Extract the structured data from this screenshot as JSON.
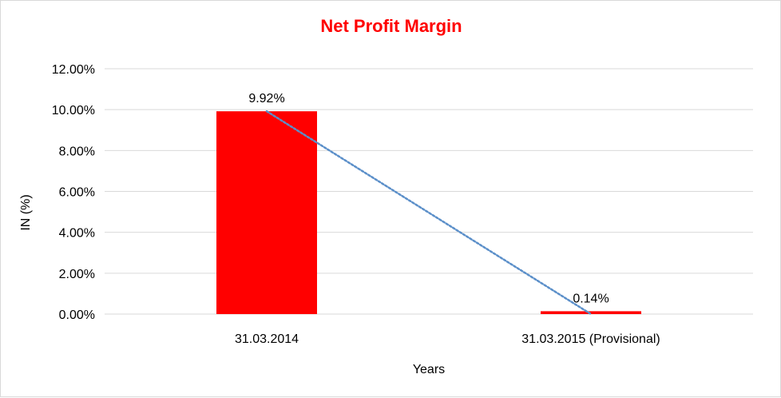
{
  "chart_data": {
    "type": "bar",
    "title": "Net Profit Margin",
    "xlabel": "Years",
    "ylabel": "IN (%)",
    "categories": [
      "31.03.2014",
      "31.03.2015 (Provisional)"
    ],
    "values": [
      9.92,
      0.14
    ],
    "data_labels": [
      "9.92%",
      "0.14%"
    ],
    "ylim": [
      0,
      12
    ],
    "y_ticks": [
      {
        "value": 0,
        "label": "0.00%"
      },
      {
        "value": 2,
        "label": "2.00%"
      },
      {
        "value": 4,
        "label": "4.00%"
      },
      {
        "value": 6,
        "label": "6.00%"
      },
      {
        "value": 8,
        "label": "8.00%"
      },
      {
        "value": 10,
        "label": "10.00%"
      },
      {
        "value": 12,
        "label": "12.00%"
      }
    ],
    "trendline": {
      "type": "linear",
      "style": "dotted"
    },
    "grid": true,
    "legend": "none",
    "colors": {
      "bar": "#ff0000",
      "title": "#ff0000",
      "trendline": "#5b8fc9",
      "grid": "#d9d9d9"
    }
  }
}
